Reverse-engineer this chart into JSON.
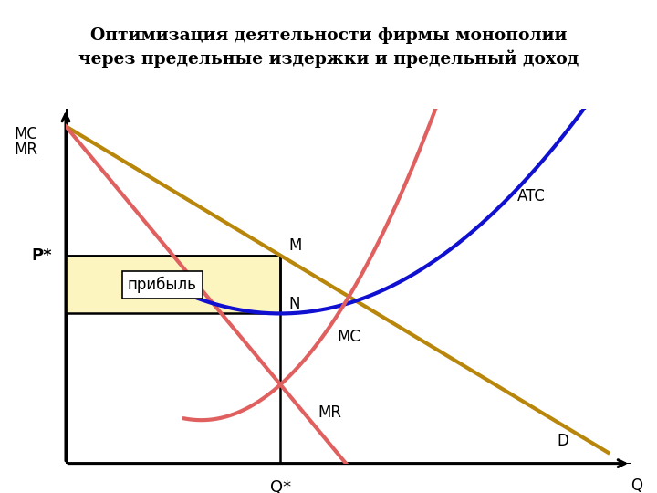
{
  "title_line1": "Оптимизация деятельности фирмы монополии",
  "title_line2": "через предельные издержки и предельный доход",
  "background_color": "#ffffff",
  "title_bg": "#f5f0e0",
  "title_border": "#7a6540",
  "profit_fill": "#fdf5c0",
  "profit_border": "#000000",
  "color_D_line": "#B8860B",
  "color_MR_line": "#e06060",
  "color_ATC_line": "#1010d0",
  "color_MC_line": "#e06060",
  "color_axis": "#000000",
  "xlim": [
    0,
    10
  ],
  "ylim": [
    0,
    10
  ],
  "Q_star": 3.8,
  "P_star": 6.8,
  "N_y": 5.5,
  "label_MC": "MC",
  "label_ATC": "ATC",
  "label_D": "D",
  "label_Pstar": "P*",
  "label_Qstar": "Q*",
  "label_Q": "Q",
  "label_MCMR": "MC\nMR",
  "label_M": "M",
  "label_N": "N",
  "label_MR_curve": "MR",
  "label_profit": "прибыль"
}
